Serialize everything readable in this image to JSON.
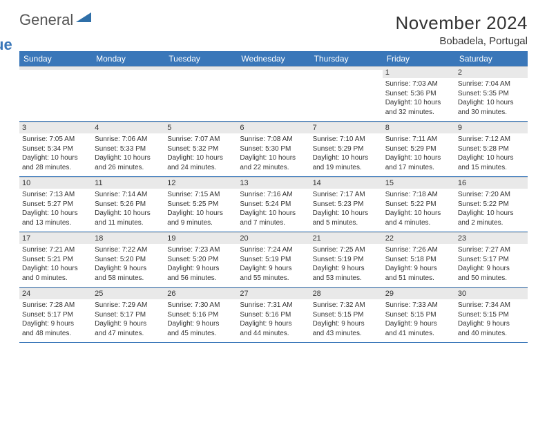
{
  "brand": {
    "line1": "General",
    "line2": "Blue"
  },
  "title": "November 2024",
  "location": "Bobadela, Portugal",
  "colors": {
    "header_bg": "#3a77b9",
    "header_text": "#ffffff",
    "daynum_bg": "#e9e9e9",
    "text": "#333333",
    "rule": "#3a77b9"
  },
  "weekdays": [
    "Sunday",
    "Monday",
    "Tuesday",
    "Wednesday",
    "Thursday",
    "Friday",
    "Saturday"
  ],
  "weeks": [
    [
      {
        "n": "",
        "lines": [
          "",
          "",
          "",
          ""
        ]
      },
      {
        "n": "",
        "lines": [
          "",
          "",
          "",
          ""
        ]
      },
      {
        "n": "",
        "lines": [
          "",
          "",
          "",
          ""
        ]
      },
      {
        "n": "",
        "lines": [
          "",
          "",
          "",
          ""
        ]
      },
      {
        "n": "",
        "lines": [
          "",
          "",
          "",
          ""
        ]
      },
      {
        "n": "1",
        "lines": [
          "Sunrise: 7:03 AM",
          "Sunset: 5:36 PM",
          "Daylight: 10 hours",
          "and 32 minutes."
        ]
      },
      {
        "n": "2",
        "lines": [
          "Sunrise: 7:04 AM",
          "Sunset: 5:35 PM",
          "Daylight: 10 hours",
          "and 30 minutes."
        ]
      }
    ],
    [
      {
        "n": "3",
        "lines": [
          "Sunrise: 7:05 AM",
          "Sunset: 5:34 PM",
          "Daylight: 10 hours",
          "and 28 minutes."
        ]
      },
      {
        "n": "4",
        "lines": [
          "Sunrise: 7:06 AM",
          "Sunset: 5:33 PM",
          "Daylight: 10 hours",
          "and 26 minutes."
        ]
      },
      {
        "n": "5",
        "lines": [
          "Sunrise: 7:07 AM",
          "Sunset: 5:32 PM",
          "Daylight: 10 hours",
          "and 24 minutes."
        ]
      },
      {
        "n": "6",
        "lines": [
          "Sunrise: 7:08 AM",
          "Sunset: 5:30 PM",
          "Daylight: 10 hours",
          "and 22 minutes."
        ]
      },
      {
        "n": "7",
        "lines": [
          "Sunrise: 7:10 AM",
          "Sunset: 5:29 PM",
          "Daylight: 10 hours",
          "and 19 minutes."
        ]
      },
      {
        "n": "8",
        "lines": [
          "Sunrise: 7:11 AM",
          "Sunset: 5:29 PM",
          "Daylight: 10 hours",
          "and 17 minutes."
        ]
      },
      {
        "n": "9",
        "lines": [
          "Sunrise: 7:12 AM",
          "Sunset: 5:28 PM",
          "Daylight: 10 hours",
          "and 15 minutes."
        ]
      }
    ],
    [
      {
        "n": "10",
        "lines": [
          "Sunrise: 7:13 AM",
          "Sunset: 5:27 PM",
          "Daylight: 10 hours",
          "and 13 minutes."
        ]
      },
      {
        "n": "11",
        "lines": [
          "Sunrise: 7:14 AM",
          "Sunset: 5:26 PM",
          "Daylight: 10 hours",
          "and 11 minutes."
        ]
      },
      {
        "n": "12",
        "lines": [
          "Sunrise: 7:15 AM",
          "Sunset: 5:25 PM",
          "Daylight: 10 hours",
          "and 9 minutes."
        ]
      },
      {
        "n": "13",
        "lines": [
          "Sunrise: 7:16 AM",
          "Sunset: 5:24 PM",
          "Daylight: 10 hours",
          "and 7 minutes."
        ]
      },
      {
        "n": "14",
        "lines": [
          "Sunrise: 7:17 AM",
          "Sunset: 5:23 PM",
          "Daylight: 10 hours",
          "and 5 minutes."
        ]
      },
      {
        "n": "15",
        "lines": [
          "Sunrise: 7:18 AM",
          "Sunset: 5:22 PM",
          "Daylight: 10 hours",
          "and 4 minutes."
        ]
      },
      {
        "n": "16",
        "lines": [
          "Sunrise: 7:20 AM",
          "Sunset: 5:22 PM",
          "Daylight: 10 hours",
          "and 2 minutes."
        ]
      }
    ],
    [
      {
        "n": "17",
        "lines": [
          "Sunrise: 7:21 AM",
          "Sunset: 5:21 PM",
          "Daylight: 10 hours",
          "and 0 minutes."
        ]
      },
      {
        "n": "18",
        "lines": [
          "Sunrise: 7:22 AM",
          "Sunset: 5:20 PM",
          "Daylight: 9 hours",
          "and 58 minutes."
        ]
      },
      {
        "n": "19",
        "lines": [
          "Sunrise: 7:23 AM",
          "Sunset: 5:20 PM",
          "Daylight: 9 hours",
          "and 56 minutes."
        ]
      },
      {
        "n": "20",
        "lines": [
          "Sunrise: 7:24 AM",
          "Sunset: 5:19 PM",
          "Daylight: 9 hours",
          "and 55 minutes."
        ]
      },
      {
        "n": "21",
        "lines": [
          "Sunrise: 7:25 AM",
          "Sunset: 5:19 PM",
          "Daylight: 9 hours",
          "and 53 minutes."
        ]
      },
      {
        "n": "22",
        "lines": [
          "Sunrise: 7:26 AM",
          "Sunset: 5:18 PM",
          "Daylight: 9 hours",
          "and 51 minutes."
        ]
      },
      {
        "n": "23",
        "lines": [
          "Sunrise: 7:27 AM",
          "Sunset: 5:17 PM",
          "Daylight: 9 hours",
          "and 50 minutes."
        ]
      }
    ],
    [
      {
        "n": "24",
        "lines": [
          "Sunrise: 7:28 AM",
          "Sunset: 5:17 PM",
          "Daylight: 9 hours",
          "and 48 minutes."
        ]
      },
      {
        "n": "25",
        "lines": [
          "Sunrise: 7:29 AM",
          "Sunset: 5:17 PM",
          "Daylight: 9 hours",
          "and 47 minutes."
        ]
      },
      {
        "n": "26",
        "lines": [
          "Sunrise: 7:30 AM",
          "Sunset: 5:16 PM",
          "Daylight: 9 hours",
          "and 45 minutes."
        ]
      },
      {
        "n": "27",
        "lines": [
          "Sunrise: 7:31 AM",
          "Sunset: 5:16 PM",
          "Daylight: 9 hours",
          "and 44 minutes."
        ]
      },
      {
        "n": "28",
        "lines": [
          "Sunrise: 7:32 AM",
          "Sunset: 5:15 PM",
          "Daylight: 9 hours",
          "and 43 minutes."
        ]
      },
      {
        "n": "29",
        "lines": [
          "Sunrise: 7:33 AM",
          "Sunset: 5:15 PM",
          "Daylight: 9 hours",
          "and 41 minutes."
        ]
      },
      {
        "n": "30",
        "lines": [
          "Sunrise: 7:34 AM",
          "Sunset: 5:15 PM",
          "Daylight: 9 hours",
          "and 40 minutes."
        ]
      }
    ]
  ]
}
